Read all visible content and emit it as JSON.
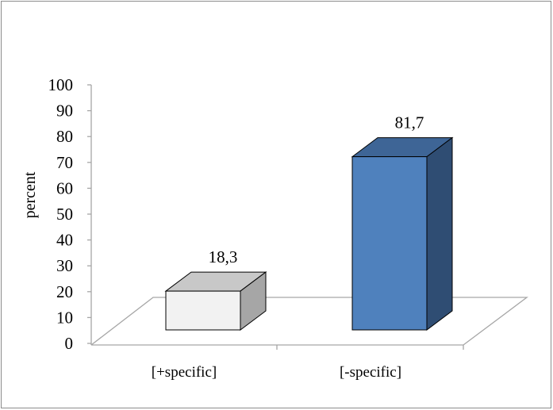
{
  "chart_data": {
    "type": "bar",
    "categories": [
      "[+specific]",
      "[-specific]"
    ],
    "values": [
      18.3,
      81.7
    ],
    "data_labels": [
      "18,3",
      "81,7"
    ],
    "ylabel": "percent",
    "ylim": [
      0,
      100
    ],
    "yticks": [
      0,
      10,
      20,
      30,
      40,
      50,
      60,
      70,
      80,
      90,
      100
    ],
    "grid": false,
    "legend": false,
    "style": "3d",
    "colors": {
      "bar1_front": "#f2f2f2",
      "bar1_top": "#c8c8c8",
      "bar1_side": "#a6a6a6",
      "bar2_front": "#4f81bd",
      "bar2_top": "#3e6596",
      "bar2_side": "#2f4d73",
      "floor_line": "#a6a6a6"
    }
  }
}
